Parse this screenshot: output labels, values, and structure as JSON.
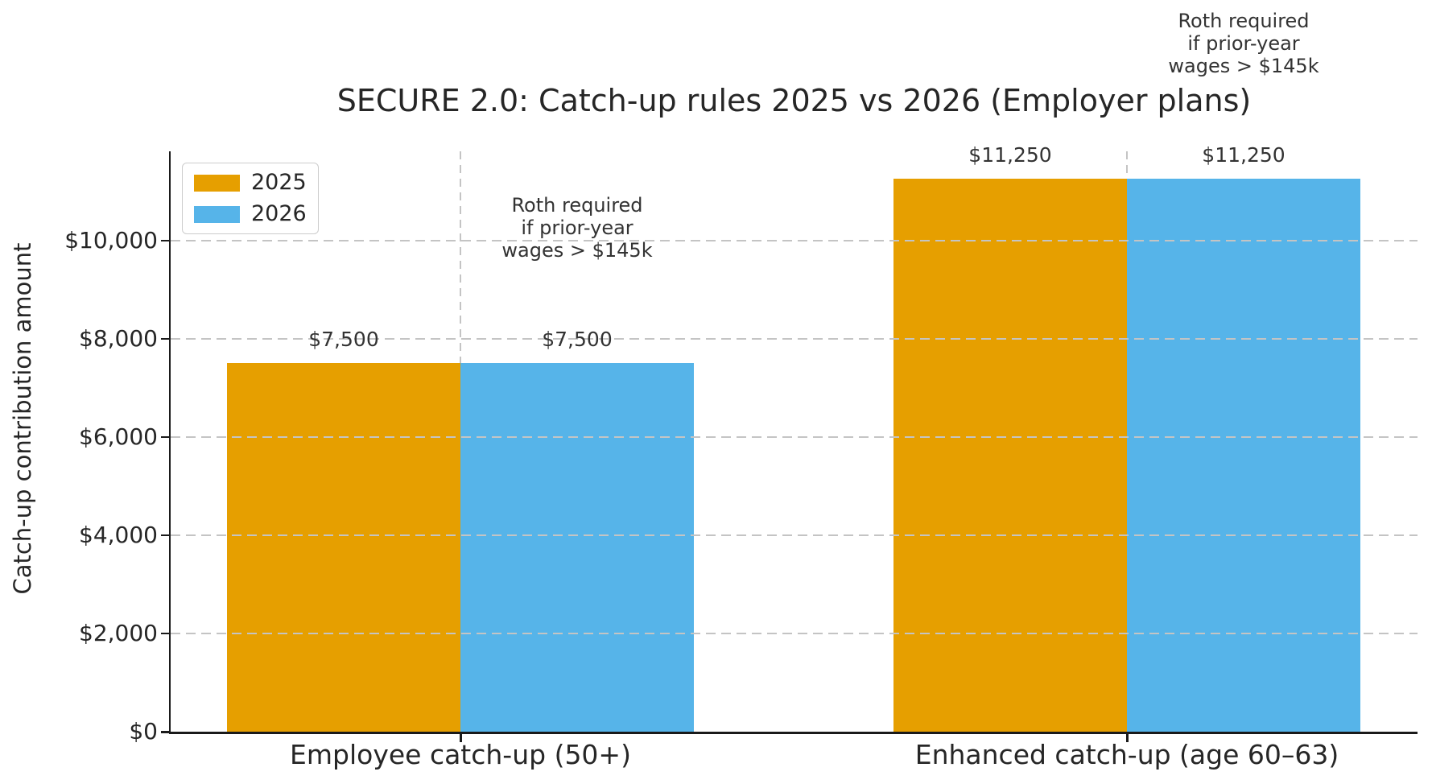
{
  "chart_data": {
    "type": "bar",
    "title": "SECURE 2.0: Catch-up rules 2025 vs 2026 (Employer plans)",
    "xlabel": "",
    "ylabel": "Catch-up contribution amount",
    "categories": [
      "Employee catch-up (50+)",
      "Enhanced catch-up (age 60–63)"
    ],
    "series": [
      {
        "name": "2025",
        "color": "#E69F00",
        "values": [
          7500,
          11250
        ],
        "value_labels": [
          "$7,500",
          "$11,250"
        ]
      },
      {
        "name": "2026",
        "color": "#56B4E9",
        "values": [
          7500,
          11250
        ],
        "value_labels": [
          "$7,500",
          "$11,250"
        ]
      }
    ],
    "yticks": [
      {
        "value": 0,
        "label": "$0"
      },
      {
        "value": 2000,
        "label": "$2,000"
      },
      {
        "value": 4000,
        "label": "$4,000"
      },
      {
        "value": 6000,
        "label": "$6,000"
      },
      {
        "value": 8000,
        "label": "$8,000"
      },
      {
        "value": 10000,
        "label": "$10,000"
      }
    ],
    "ylim": [
      0,
      11812
    ],
    "grid": "dashed light-gray gridlines on both axes, drawn over bars",
    "legend_position": "upper left",
    "legend_entries": [
      "2025",
      "2026"
    ],
    "annotations": [
      {
        "text": "Roth required\nif prior-year\nwages > $145k",
        "category_index": 0,
        "series_index": 1
      },
      {
        "text": "Roth required\nif prior-year\nwages > $145k",
        "category_index": 1,
        "series_index": 1
      }
    ]
  }
}
